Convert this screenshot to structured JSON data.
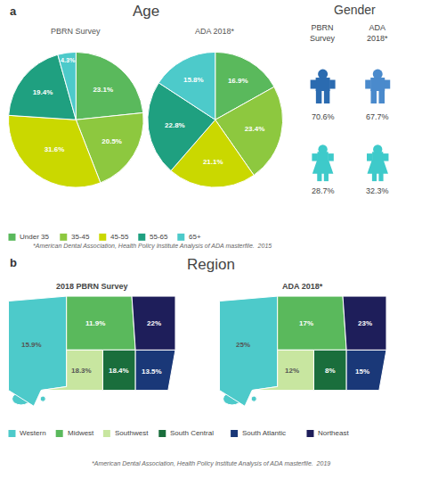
{
  "chart_data": [
    {
      "type": "pie",
      "title": "Age",
      "subtitle": "PBRN Survey",
      "annotations": [
        "a",
        "*American Dental Association, Health Policy Institute Analysis of ADA masterfile.  2015"
      ],
      "categories": [
        "Under 35",
        "35-45",
        "45-55",
        "55-65",
        "65+"
      ],
      "values": [
        23.1,
        20.5,
        31.6,
        19.4,
        4.3
      ],
      "value_labels": [
        "23.1%",
        "20.5%",
        "31.6%",
        "19.4%",
        "4.3%"
      ],
      "colors": [
        "#5ab95c",
        "#8dc83f",
        "#cad800",
        "#1fa080",
        "#4dcaca"
      ],
      "data_labels": true,
      "legend": "bottom"
    },
    {
      "type": "pie",
      "subtitle": "ADA 2018*",
      "categories": [
        "Under 35",
        "35-45",
        "45-55",
        "55-65",
        "65+"
      ],
      "values": [
        16.9,
        23.4,
        21.1,
        22.8,
        15.8
      ],
      "value_labels": [
        "16.9%",
        "23.4%",
        "21.1%",
        "22.8%",
        "15.8%"
      ],
      "colors": [
        "#5ab95c",
        "#8dc83f",
        "#cad800",
        "#1fa080",
        "#4dcaca"
      ],
      "data_labels": true
    },
    {
      "type": "pictogram",
      "title": "Gender",
      "marker": "person",
      "data_labels": true,
      "series": [
        {
          "name": "PBRN\nSurvey",
          "values": [
            70.6,
            28.7
          ],
          "value_labels": [
            "70.6%",
            "28.7%"
          ],
          "colors": [
            "#2b6bb0",
            "#3ecaca"
          ]
        },
        {
          "name": "ADA\n2018*",
          "values": [
            67.7,
            32.3
          ],
          "value_labels": [
            "67.7%",
            "32.3%"
          ],
          "colors": [
            "#4a8acc",
            "#3ecaca"
          ]
        }
      ]
    },
    {
      "type": "map",
      "title": "Region",
      "subtitle": "2018 PBRN Survey",
      "annotations": [
        "b",
        "*American Dental Association, Health Policy Institute Analysis of ADA masterfile.  2019"
      ],
      "categories": [
        "Western",
        "Midwest",
        "Southwest",
        "South Central",
        "South Atlantic",
        "Northeast"
      ],
      "values": [
        15.9,
        11.9,
        18.3,
        18.4,
        13.5,
        22
      ],
      "value_labels": [
        "15.9%",
        "11.9%",
        "18.3%",
        "18.4%",
        "13.5%",
        "22%"
      ],
      "colors": [
        "#4dcaca",
        "#5ab95c",
        "#c8e6a0",
        "#1a6e3c",
        "#1a3878",
        "#1e1e5a"
      ],
      "data_labels": true,
      "legend": "bottom"
    },
    {
      "type": "map",
      "subtitle": "ADA 2018*",
      "categories": [
        "Western",
        "Midwest",
        "Southwest",
        "South Central",
        "South Atlantic",
        "Northeast"
      ],
      "values": [
        25,
        17,
        12,
        8,
        15,
        23
      ],
      "value_labels": [
        "25%",
        "17%",
        "12%",
        "8%",
        "15%",
        "23%"
      ],
      "colors": [
        "#4dcaca",
        "#5ab95c",
        "#c8e6a0",
        "#1a6e3c",
        "#1a3878",
        "#1e1e5a"
      ],
      "data_labels": true
    }
  ]
}
